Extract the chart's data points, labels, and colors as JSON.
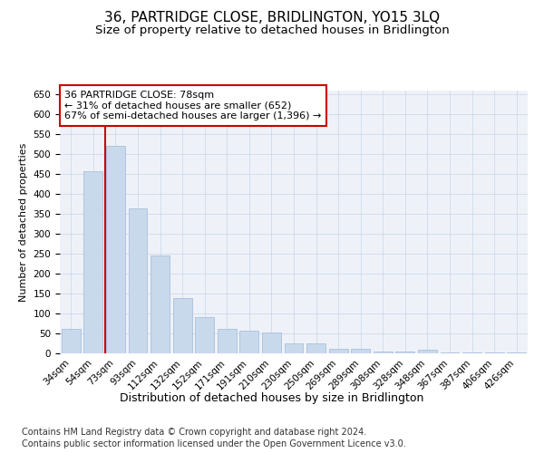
{
  "title": "36, PARTRIDGE CLOSE, BRIDLINGTON, YO15 3LQ",
  "subtitle": "Size of property relative to detached houses in Bridlington",
  "xlabel": "Distribution of detached houses by size in Bridlington",
  "ylabel": "Number of detached properties",
  "bar_labels": [
    "34sqm",
    "54sqm",
    "73sqm",
    "93sqm",
    "112sqm",
    "132sqm",
    "152sqm",
    "171sqm",
    "191sqm",
    "210sqm",
    "230sqm",
    "250sqm",
    "269sqm",
    "289sqm",
    "308sqm",
    "328sqm",
    "348sqm",
    "367sqm",
    "387sqm",
    "406sqm",
    "426sqm"
  ],
  "bar_values": [
    62,
    457,
    522,
    365,
    245,
    138,
    91,
    61,
    57,
    53,
    25,
    25,
    12,
    12,
    5,
    5,
    8,
    3,
    3,
    3,
    3
  ],
  "bar_color": "#c9d9ec",
  "bar_edge_color": "#a0b8d8",
  "highlight_index": 2,
  "red_line_color": "#cc0000",
  "annotation_text": "36 PARTRIDGE CLOSE: 78sqm\n← 31% of detached houses are smaller (652)\n67% of semi-detached houses are larger (1,396) →",
  "annotation_box_color": "#ffffff",
  "annotation_box_edge": "#cc0000",
  "ylim": [
    0,
    660
  ],
  "yticks": [
    0,
    50,
    100,
    150,
    200,
    250,
    300,
    350,
    400,
    450,
    500,
    550,
    600,
    650
  ],
  "footer_line1": "Contains HM Land Registry data © Crown copyright and database right 2024.",
  "footer_line2": "Contains public sector information licensed under the Open Government Licence v3.0.",
  "title_fontsize": 11,
  "subtitle_fontsize": 9.5,
  "xlabel_fontsize": 9,
  "ylabel_fontsize": 8,
  "tick_fontsize": 7.5,
  "annotation_fontsize": 8,
  "footer_fontsize": 7,
  "bg_color": "#eef2f8",
  "fig_bg_color": "#ffffff",
  "grid_color": "#c8d4e8"
}
